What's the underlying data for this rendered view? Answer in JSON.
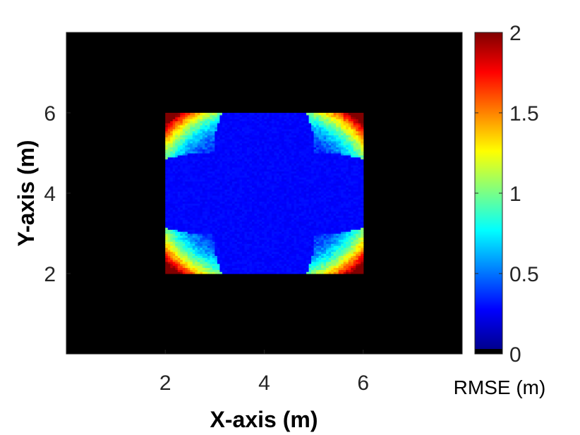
{
  "chart_data": {
    "type": "heatmap",
    "description_kind": "rmse-map",
    "xlabel": "X-axis (m)",
    "ylabel": "Y-axis (m)",
    "xlim": [
      0,
      8
    ],
    "ylim": [
      0,
      8
    ],
    "xticks": [
      2,
      4,
      6
    ],
    "xtick_labels": [
      "2",
      "4",
      "6"
    ],
    "yticks": [
      2,
      4,
      6
    ],
    "ytick_labels": [
      "2",
      "4",
      "6"
    ],
    "grid_resolution": 0.05,
    "background_value": 0,
    "covered_region": {
      "x": [
        2,
        6
      ],
      "y": [
        2,
        6
      ]
    },
    "center": [
      4,
      4
    ],
    "lobe_radius": 2.2,
    "lobe_centers": [
      [
        2.8,
        5.2
      ],
      [
        5.2,
        5.2
      ],
      [
        2.8,
        2.8
      ],
      [
        5.2,
        2.8
      ]
    ],
    "center_rmse": 0.3,
    "corner_rmse_max": 2,
    "colorbar": {
      "label": "RMSE (m)",
      "range": [
        0,
        2
      ],
      "ticks": [
        0,
        0.5,
        1,
        1.5,
        2
      ],
      "tick_labels": [
        "0",
        "0.5",
        "1",
        "1.5",
        "2"
      ],
      "colormap": "jet",
      "low_end_color": "#000000"
    }
  }
}
